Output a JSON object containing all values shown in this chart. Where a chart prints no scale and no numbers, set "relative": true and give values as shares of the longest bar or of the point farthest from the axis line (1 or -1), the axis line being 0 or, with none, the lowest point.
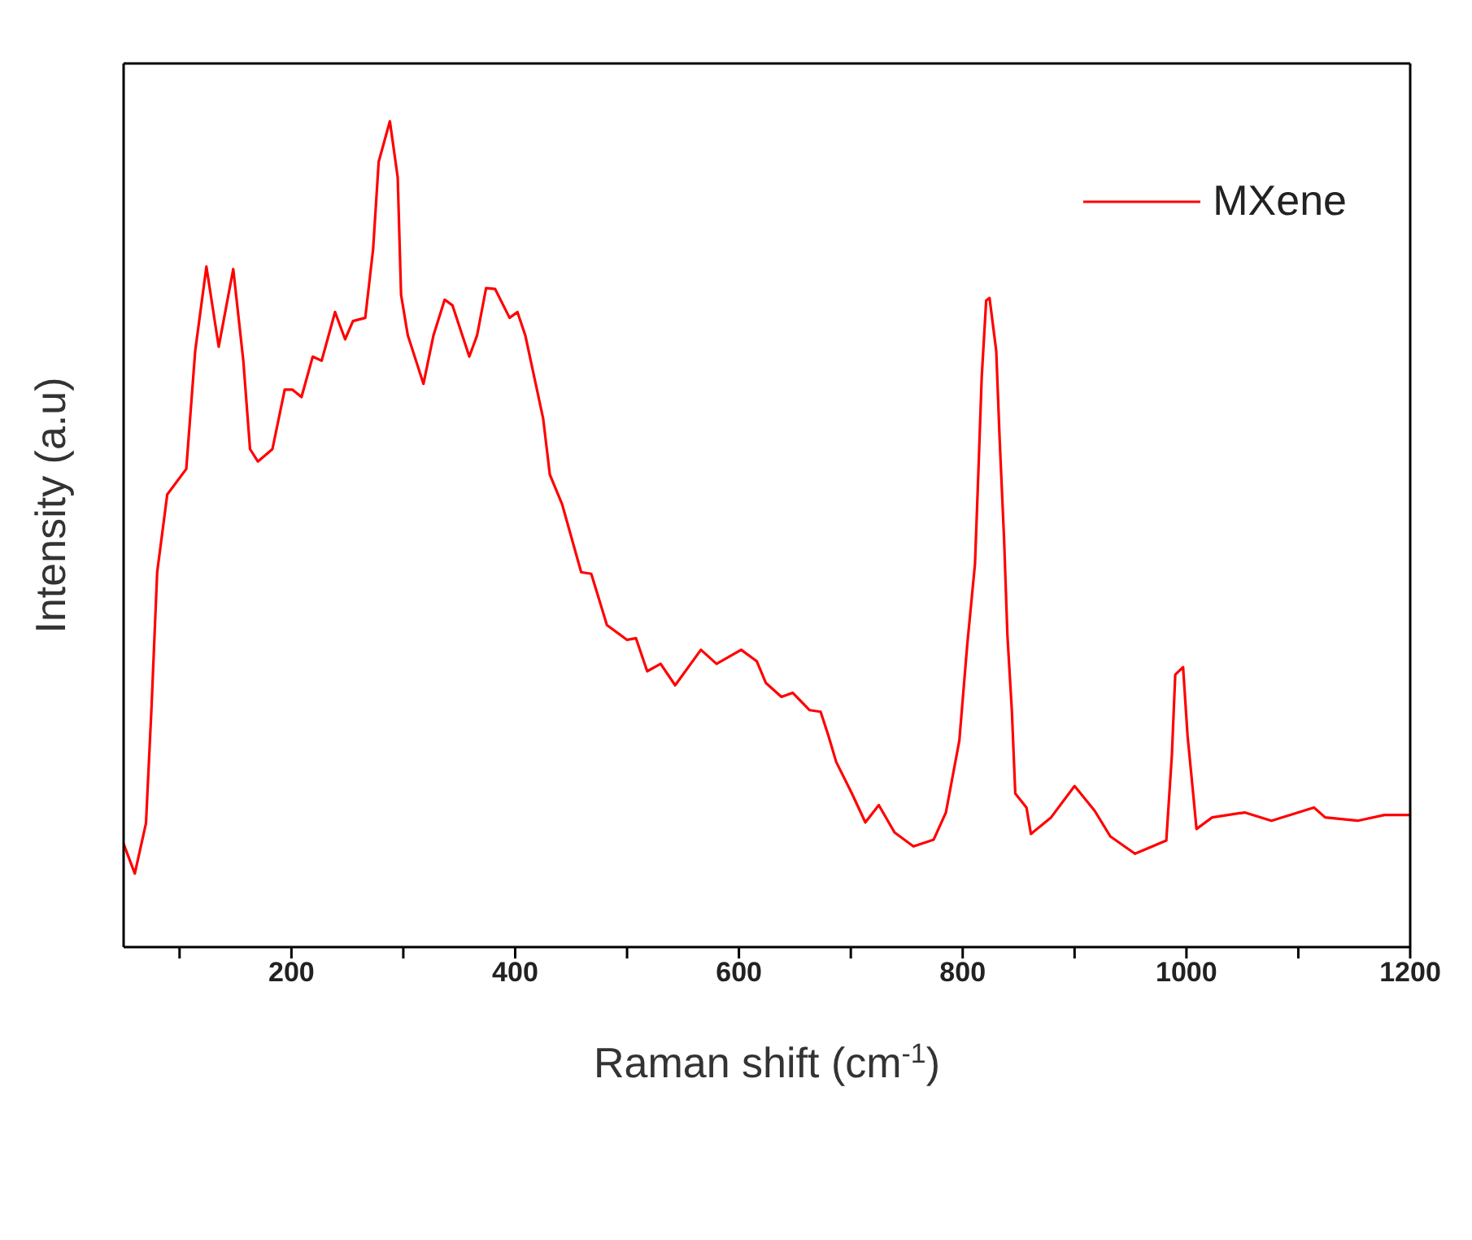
{
  "chart_data": {
    "type": "line",
    "xlabel": "Raman shift (cm$^{-1}$)",
    "ylabel": "Intensity (a.u)",
    "relative": true,
    "xlim": [
      50,
      1200
    ],
    "xticks": [
      {
        "value": 100,
        "label": null
      },
      200,
      {
        "value": 300,
        "label": null
      },
      400,
      {
        "value": 500,
        "label": null
      },
      600,
      {
        "value": 700,
        "label": null
      },
      800,
      {
        "value": 900,
        "label": null
      },
      1000,
      {
        "value": 1100,
        "label": null
      },
      1200
    ],
    "legend": "top right",
    "marker": "none",
    "line_style": "solid",
    "grid": false,
    "x": [
      50,
      60,
      70,
      75,
      80,
      89,
      106,
      114,
      124,
      135,
      148,
      157,
      163,
      170,
      183,
      194,
      201,
      209,
      219,
      227,
      239,
      248,
      255,
      266,
      273,
      278,
      288,
      295,
      298,
      304,
      318,
      327,
      337,
      344,
      359,
      366,
      374,
      382,
      395,
      402,
      409,
      425,
      431,
      442,
      459,
      468,
      482,
      500,
      508,
      518,
      530,
      543,
      566,
      580,
      602,
      616,
      624,
      638,
      648,
      663,
      673,
      680,
      687,
      701,
      713,
      725,
      739,
      756,
      774,
      785,
      797,
      804,
      811,
      814,
      817,
      821,
      824,
      830,
      833,
      837,
      840,
      844,
      847,
      857,
      861,
      879,
      900,
      918,
      932,
      954,
      982,
      987,
      990,
      997,
      1001,
      1006,
      1009,
      1023,
      1052,
      1076,
      1114,
      1124,
      1153,
      1177,
      1200
    ],
    "series": [
      {
        "name": "MXene",
        "color": "#ff0000",
        "values": [
          0.125,
          0.089,
          0.15,
          0.292,
          0.454,
          0.548,
          0.579,
          0.722,
          0.824,
          0.727,
          0.821,
          0.71,
          0.603,
          0.588,
          0.603,
          0.675,
          0.675,
          0.666,
          0.715,
          0.71,
          0.769,
          0.736,
          0.758,
          0.762,
          0.845,
          0.951,
          1,
          0.932,
          0.79,
          0.741,
          0.682,
          0.741,
          0.784,
          0.777,
          0.715,
          0.741,
          0.798,
          0.797,
          0.762,
          0.769,
          0.741,
          0.64,
          0.572,
          0.536,
          0.454,
          0.452,
          0.39,
          0.372,
          0.374,
          0.334,
          0.343,
          0.317,
          0.36,
          0.343,
          0.36,
          0.346,
          0.32,
          0.303,
          0.308,
          0.287,
          0.285,
          0.256,
          0.224,
          0.186,
          0.151,
          0.172,
          0.139,
          0.122,
          0.13,
          0.163,
          0.25,
          0.365,
          0.464,
          0.574,
          0.69,
          0.783,
          0.786,
          0.722,
          0.616,
          0.494,
          0.377,
          0.285,
          0.186,
          0.169,
          0.137,
          0.157,
          0.195,
          0.165,
          0.134,
          0.113,
          0.129,
          0.233,
          0.33,
          0.339,
          0.256,
          0.186,
          0.143,
          0.157,
          0.163,
          0.153,
          0.169,
          0.157,
          0.153,
          0.16,
          0.16
        ]
      }
    ]
  }
}
